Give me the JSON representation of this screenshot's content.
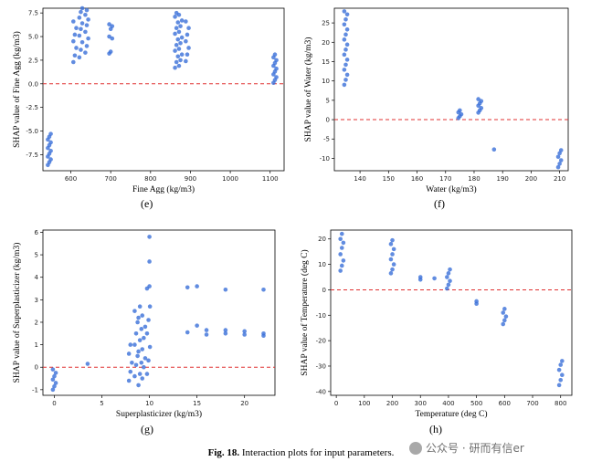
{
  "caption": {
    "fig": "Fig. 18.",
    "text": "Interaction plots for input parameters."
  },
  "watermark": {
    "text": "公众号 · 研而有信er",
    "icon": "wechat-icon"
  },
  "colors": {
    "point": "#3a6fd8",
    "zero_line": "#e03030",
    "axis": "#000000"
  },
  "chart_data": [
    {
      "id": "e",
      "label": "(e)",
      "type": "scatter",
      "xlabel": "Fine Agg (kg/m3)",
      "ylabel": "SHAP value of Fine Agg (kg/m3)",
      "xlim": [
        530,
        1135
      ],
      "ylim": [
        -9.2,
        8.0
      ],
      "xticks": [
        600,
        700,
        800,
        900,
        1000,
        1100
      ],
      "yticks": [
        -7.5,
        -5.0,
        -2.5,
        0.0,
        2.5,
        5.0,
        7.5
      ],
      "ytick_labels": [
        "-7.5",
        "-5.0",
        "-2.5",
        "0.0",
        "2.5",
        "5.0",
        "7.5"
      ],
      "zero_line": 0,
      "clusters": [
        {
          "x": 546,
          "y": [
            -8.6,
            -8.3,
            -8.0,
            -7.7,
            -7.4,
            -7.1,
            -6.8,
            -6.5,
            -6.2,
            -5.9,
            -5.6,
            -5.3
          ]
        },
        {
          "x": 610,
          "y": [
            2.3,
            3.0,
            3.8,
            4.5,
            5.2,
            5.9,
            6.6
          ]
        },
        {
          "x": 625,
          "y": [
            2.8,
            3.6,
            4.4,
            5.1,
            5.8,
            6.4,
            7.0,
            7.6,
            8.0
          ]
        },
        {
          "x": 640,
          "y": [
            3.3,
            4.0,
            4.8,
            5.5,
            6.2,
            6.8,
            7.3,
            7.8
          ]
        },
        {
          "x": 700,
          "y": [
            3.2,
            3.4,
            4.8,
            5.0,
            5.8,
            6.1,
            6.3
          ]
        },
        {
          "x": 865,
          "y": [
            1.7,
            2.3,
            2.9,
            3.5,
            4.1,
            4.7,
            5.3,
            5.9,
            6.5,
            7.1,
            7.5
          ]
        },
        {
          "x": 875,
          "y": [
            1.9,
            2.5,
            3.1,
            3.7,
            4.3,
            4.9,
            5.5,
            6.1,
            6.7,
            7.3
          ]
        },
        {
          "x": 892,
          "y": [
            2.4,
            3.1,
            3.8,
            4.5,
            5.2,
            5.9,
            6.6
          ]
        },
        {
          "x": 1112,
          "y": [
            0.1,
            0.4,
            0.7,
            1.0,
            1.3,
            1.6,
            1.9,
            2.2,
            2.5,
            2.8,
            3.1
          ]
        }
      ]
    },
    {
      "id": "f",
      "label": "(f)",
      "type": "scatter",
      "xlabel": "Water (kg/m3)",
      "ylabel": "SHAP value of Water (kg/m3)",
      "xlim": [
        131,
        213
      ],
      "ylim": [
        -13.2,
        28.8
      ],
      "xticks": [
        140,
        150,
        160,
        170,
        180,
        190,
        200,
        210
      ],
      "yticks": [
        -10,
        -5,
        0,
        5,
        10,
        15,
        20,
        25
      ],
      "ytick_labels": [
        "-10",
        "-5",
        "0",
        "5",
        "10",
        "15",
        "20",
        "25"
      ],
      "zero_line": 0,
      "clusters": [
        {
          "x": 135,
          "y": [
            9,
            10.3,
            11.6,
            12.9,
            14.2,
            15.5,
            16.8,
            18.1,
            19.4,
            20.7,
            22,
            23.3,
            24.6,
            25.9,
            27.2,
            28
          ]
        },
        {
          "x": 175,
          "y": [
            0.4,
            0.9,
            1.4,
            1.9,
            2.4
          ]
        },
        {
          "x": 182,
          "y": [
            1.8,
            2.4,
            3.0,
            3.6,
            4.2,
            4.8,
            5.3
          ]
        },
        {
          "x": 187,
          "y": [
            -7.7
          ]
        },
        {
          "x": 210,
          "y": [
            -12.3,
            -11.4,
            -10.5,
            -9.6,
            -8.7,
            -7.9
          ]
        }
      ]
    },
    {
      "id": "g",
      "label": "(g)",
      "type": "scatter",
      "xlabel": "Superplasticizer (kg/m3)",
      "ylabel": "SHAP value of Superplasticizer (kg/m3)",
      "xlim": [
        -1.2,
        23.2
      ],
      "ylim": [
        -1.25,
        6.1
      ],
      "xticks": [
        0,
        5,
        10,
        15,
        20
      ],
      "yticks": [
        -1,
        0,
        1,
        2,
        3,
        4,
        5,
        6
      ],
      "ytick_labels": [
        "-1",
        "0",
        "1",
        "2",
        "3",
        "4",
        "5",
        "6"
      ],
      "zero_line": 0,
      "clusters": [
        {
          "x": 0,
          "y": [
            -1.0,
            -0.85,
            -0.7,
            -0.55,
            -0.4,
            -0.25,
            -0.1
          ]
        },
        {
          "x": 3.5,
          "y": [
            0.15
          ]
        },
        {
          "x": 8.0,
          "y": [
            -0.6,
            -0.2,
            0.2,
            0.6,
            1.0
          ]
        },
        {
          "x": 8.6,
          "y": [
            -0.4,
            0.1,
            0.5,
            1.0,
            1.5,
            2.0,
            2.5
          ]
        },
        {
          "x": 9.0,
          "y": [
            -0.8,
            -0.3,
            0.2,
            0.7,
            1.2,
            1.7,
            2.2,
            2.7
          ]
        },
        {
          "x": 9.4,
          "y": [
            -0.5,
            0.0,
            0.4,
            0.8,
            1.3,
            1.8,
            2.3
          ]
        },
        {
          "x": 9.9,
          "y": [
            -0.3,
            0.3,
            0.9,
            1.5,
            2.1,
            2.7,
            3.5
          ]
        },
        {
          "x": 10.0,
          "y": [
            3.6,
            4.7,
            5.8
          ]
        },
        {
          "x": 14.0,
          "y": [
            1.55,
            3.55
          ]
        },
        {
          "x": 15.0,
          "y": [
            1.85,
            3.6
          ]
        },
        {
          "x": 16.0,
          "y": [
            1.45,
            1.65
          ]
        },
        {
          "x": 18.0,
          "y": [
            1.5,
            1.65,
            3.45
          ]
        },
        {
          "x": 20.0,
          "y": [
            1.45,
            1.6
          ]
        },
        {
          "x": 22.0,
          "y": [
            1.4,
            1.5,
            3.45
          ]
        }
      ]
    },
    {
      "id": "h",
      "label": "(h)",
      "type": "scatter",
      "xlabel": "Temperature (deg C)",
      "ylabel": "SHAP value of Temperature (deg C)",
      "xlim": [
        -20,
        840
      ],
      "ylim": [
        -41.5,
        23.5
      ],
      "xticks": [
        0,
        100,
        200,
        300,
        400,
        500,
        600,
        700,
        800
      ],
      "yticks": [
        -40,
        -30,
        -20,
        -10,
        0,
        10,
        20
      ],
      "ytick_labels": [
        "-40",
        "-30",
        "-20",
        "-10",
        "0",
        "10",
        "20"
      ],
      "zero_line": 0,
      "clusters": [
        {
          "x": 20,
          "y": [
            7.5,
            9.5,
            11.5,
            14,
            16.5,
            18.5,
            20,
            22
          ]
        },
        {
          "x": 200,
          "y": [
            6.5,
            8,
            10,
            12,
            14,
            16,
            18,
            19.5
          ]
        },
        {
          "x": 300,
          "y": [
            4,
            5
          ]
        },
        {
          "x": 350,
          "y": [
            4.5
          ]
        },
        {
          "x": 400,
          "y": [
            0.5,
            2,
            3.5,
            5,
            6.5,
            8
          ]
        },
        {
          "x": 500,
          "y": [
            -5.5,
            -4.5
          ]
        },
        {
          "x": 600,
          "y": [
            -13.5,
            -12,
            -10.5,
            -9,
            -7.5
          ]
        },
        {
          "x": 800,
          "y": [
            -37.5,
            -35.5,
            -33.5,
            -31.5,
            -29.5,
            -28
          ]
        }
      ]
    }
  ]
}
